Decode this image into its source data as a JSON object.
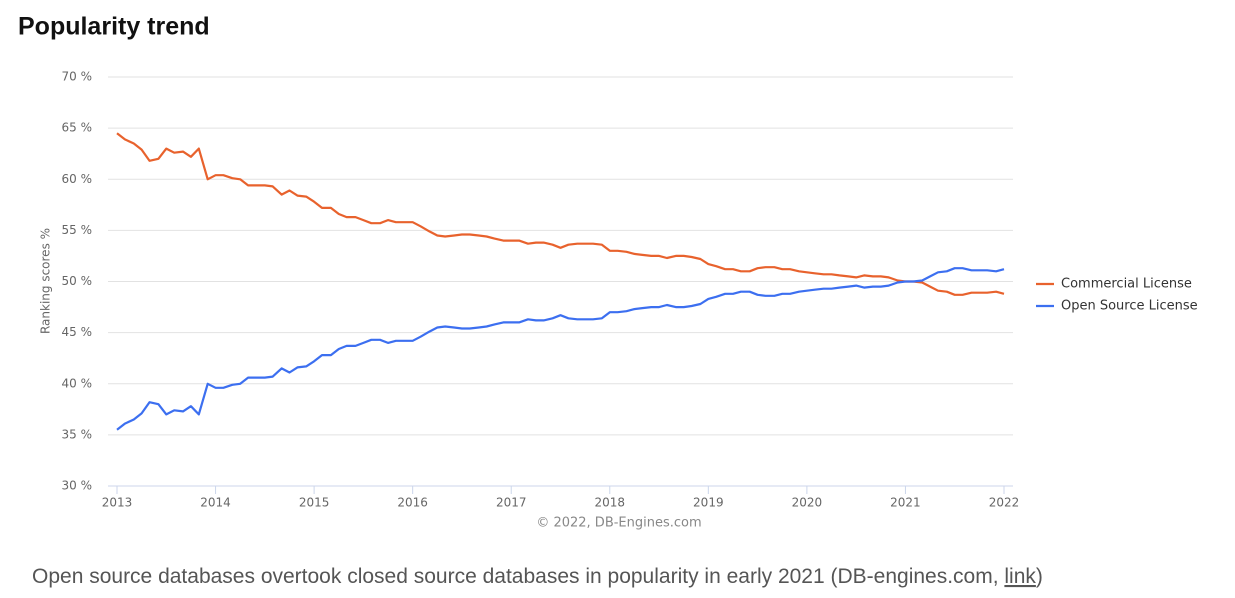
{
  "title": "Popularity trend",
  "chart_data": {
    "type": "line",
    "y_label": "Ranking scores %",
    "credit": "© 2022, DB-Engines.com",
    "x": [
      2013,
      2013.08,
      2013.17,
      2013.25,
      2013.33,
      2013.42,
      2013.5,
      2013.58,
      2013.67,
      2013.75,
      2013.83,
      2013.92,
      2014,
      2014.08,
      2014.17,
      2014.25,
      2014.33,
      2014.42,
      2014.5,
      2014.58,
      2014.67,
      2014.75,
      2014.83,
      2014.92,
      2015,
      2015.08,
      2015.17,
      2015.25,
      2015.33,
      2015.42,
      2015.5,
      2015.58,
      2015.67,
      2015.75,
      2015.83,
      2015.92,
      2016,
      2016.08,
      2016.17,
      2016.25,
      2016.33,
      2016.42,
      2016.5,
      2016.58,
      2016.67,
      2016.75,
      2016.83,
      2016.92,
      2017,
      2017.08,
      2017.17,
      2017.25,
      2017.33,
      2017.42,
      2017.5,
      2017.58,
      2017.67,
      2017.75,
      2017.83,
      2017.92,
      2018,
      2018.08,
      2018.17,
      2018.25,
      2018.33,
      2018.42,
      2018.5,
      2018.58,
      2018.67,
      2018.75,
      2018.83,
      2018.92,
      2019,
      2019.08,
      2019.17,
      2019.25,
      2019.33,
      2019.42,
      2019.5,
      2019.58,
      2019.67,
      2019.75,
      2019.83,
      2019.92,
      2020,
      2020.08,
      2020.17,
      2020.25,
      2020.33,
      2020.42,
      2020.5,
      2020.58,
      2020.67,
      2020.75,
      2020.83,
      2020.92,
      2021,
      2021.08,
      2021.17,
      2021.25,
      2021.33,
      2021.42,
      2021.5,
      2021.58,
      2021.67,
      2021.75,
      2021.83,
      2021.92,
      2022
    ],
    "series": [
      {
        "name": "Commercial License",
        "color": "#e8622d",
        "values": [
          64.5,
          63.9,
          63.5,
          62.9,
          61.8,
          62.0,
          63.0,
          62.6,
          62.7,
          62.2,
          63.0,
          60.0,
          60.4,
          60.4,
          60.1,
          60.0,
          59.4,
          59.4,
          59.4,
          59.3,
          58.5,
          58.9,
          58.4,
          58.3,
          57.8,
          57.2,
          57.2,
          56.6,
          56.3,
          56.3,
          56.0,
          55.7,
          55.7,
          56.0,
          55.8,
          55.8,
          55.8,
          55.4,
          54.9,
          54.5,
          54.4,
          54.5,
          54.6,
          54.6,
          54.5,
          54.4,
          54.2,
          54.0,
          54.0,
          54.0,
          53.7,
          53.8,
          53.8,
          53.6,
          53.3,
          53.6,
          53.7,
          53.7,
          53.7,
          53.6,
          53.0,
          53.0,
          52.9,
          52.7,
          52.6,
          52.5,
          52.5,
          52.3,
          52.5,
          52.5,
          52.4,
          52.2,
          51.7,
          51.5,
          51.2,
          51.2,
          51.0,
          51.0,
          51.3,
          51.4,
          51.4,
          51.2,
          51.2,
          51.0,
          50.9,
          50.8,
          50.7,
          50.7,
          50.6,
          50.5,
          50.4,
          50.6,
          50.5,
          50.5,
          50.4,
          50.1,
          50.0,
          50.0,
          49.9,
          49.5,
          49.1,
          49.0,
          48.7,
          48.7,
          48.9,
          48.9,
          48.9,
          49.0,
          48.8
        ]
      },
      {
        "name": "Open Source License",
        "color": "#3c6ff0",
        "values": [
          35.5,
          36.1,
          36.5,
          37.1,
          38.2,
          38.0,
          37.0,
          37.4,
          37.3,
          37.8,
          37.0,
          40.0,
          39.6,
          39.6,
          39.9,
          40.0,
          40.6,
          40.6,
          40.6,
          40.7,
          41.5,
          41.1,
          41.6,
          41.7,
          42.2,
          42.8,
          42.8,
          43.4,
          43.7,
          43.7,
          44.0,
          44.3,
          44.3,
          44.0,
          44.2,
          44.2,
          44.2,
          44.6,
          45.1,
          45.5,
          45.6,
          45.5,
          45.4,
          45.4,
          45.5,
          45.6,
          45.8,
          46.0,
          46.0,
          46.0,
          46.3,
          46.2,
          46.2,
          46.4,
          46.7,
          46.4,
          46.3,
          46.3,
          46.3,
          46.4,
          47.0,
          47.0,
          47.1,
          47.3,
          47.4,
          47.5,
          47.5,
          47.7,
          47.5,
          47.5,
          47.6,
          47.8,
          48.3,
          48.5,
          48.8,
          48.8,
          49.0,
          49.0,
          48.7,
          48.6,
          48.6,
          48.8,
          48.8,
          49.0,
          49.1,
          49.2,
          49.3,
          49.3,
          49.4,
          49.5,
          49.6,
          49.4,
          49.5,
          49.5,
          49.6,
          49.9,
          50.0,
          50.0,
          50.1,
          50.5,
          50.9,
          51.0,
          51.3,
          51.3,
          51.1,
          51.1,
          51.1,
          51.0,
          51.2
        ]
      }
    ],
    "xlim": [
      2013,
      2022
    ],
    "xticks": [
      2013,
      2014,
      2015,
      2016,
      2017,
      2018,
      2019,
      2020,
      2021,
      2022
    ],
    "ylim": [
      30,
      70
    ],
    "yticks": [
      {
        "value": 30,
        "label": "30 %"
      },
      {
        "value": 35,
        "label": "35 %"
      },
      {
        "value": 40,
        "label": "40 %"
      },
      {
        "value": 45,
        "label": "45 %"
      },
      {
        "value": 50,
        "label": "50 %"
      },
      {
        "value": 55,
        "label": "55 %"
      },
      {
        "value": 60,
        "label": "60 %"
      },
      {
        "value": 65,
        "label": "65 %"
      },
      {
        "value": 70,
        "label": "70 %"
      }
    ],
    "grid": true,
    "legend": "right"
  },
  "caption": {
    "text": "Open source databases overtook closed source databases in popularity in early 2021 (DB-engines.com, ",
    "link": "link",
    "end": ")"
  }
}
